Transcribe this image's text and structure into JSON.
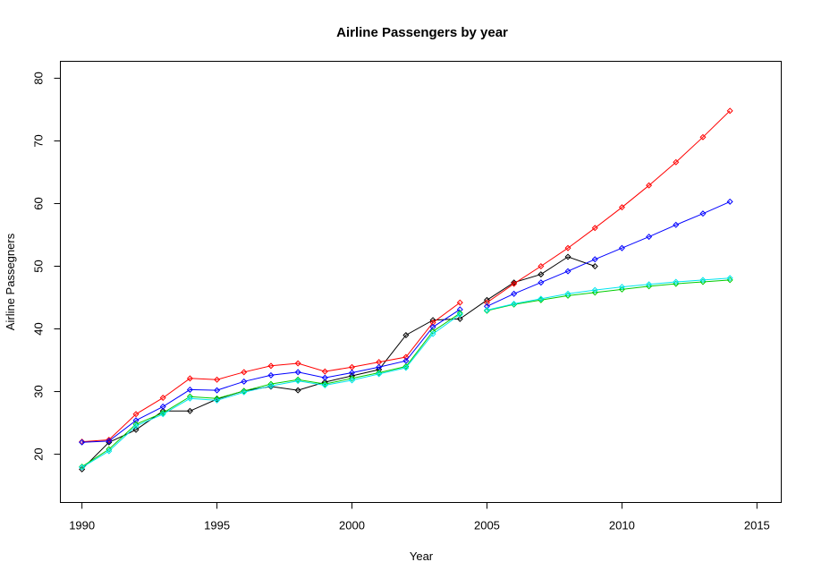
{
  "chart_data": {
    "type": "line",
    "title": "Airline Passengers by year",
    "xlabel": "Year",
    "ylabel": "Airline Passegners",
    "xlim": [
      1989.2,
      2015.9
    ],
    "ylim": [
      12.3,
      82.7
    ],
    "xticks": [
      1990,
      1995,
      2000,
      2005,
      2010,
      2015
    ],
    "yticks": [
      20,
      30,
      40,
      50,
      60,
      70,
      80
    ],
    "grid": false,
    "series": [
      {
        "color": "#000000",
        "x": [
          1990,
          1991,
          1992,
          1993,
          1994,
          1995,
          1996,
          1997,
          1998,
          1999,
          2000,
          2001,
          2002,
          2003,
          2004,
          2005,
          2006,
          2007,
          2008,
          2009
        ],
        "values": [
          17.6,
          21.9,
          23.9,
          26.9,
          26.9,
          28.8,
          30.1,
          30.8,
          30.2,
          31.5,
          32.5,
          33.5,
          39.0,
          41.4,
          41.6,
          44.6,
          47.4,
          48.7,
          51.5,
          50.0
        ]
      },
      {
        "color": "#ff0000",
        "x": [
          1990,
          1991,
          1992,
          1993,
          1994,
          1995,
          1996,
          1997,
          1998,
          1999,
          2000,
          2001,
          2002,
          2003,
          2004
        ],
        "values": [
          22.0,
          22.3,
          26.4,
          29.0,
          32.1,
          31.9,
          33.1,
          34.1,
          34.5,
          33.2,
          33.9,
          34.7,
          35.5,
          41.0,
          44.2
        ]
      },
      {
        "color": "#0000ff",
        "x": [
          1990,
          1991,
          1992,
          1993,
          1994,
          1995,
          1996,
          1997,
          1998,
          1999,
          2000,
          2001,
          2002,
          2003,
          2004
        ],
        "values": [
          21.9,
          22.1,
          25.4,
          27.6,
          30.3,
          30.2,
          31.6,
          32.6,
          33.1,
          32.2,
          33.0,
          33.9,
          34.9,
          40.3,
          43.1
        ]
      },
      {
        "color": "#00cd00",
        "x": [
          1990,
          1991,
          1992,
          1993,
          1994,
          1995,
          1996,
          1997,
          1998,
          1999,
          2000,
          2001,
          2002,
          2003,
          2004
        ],
        "values": [
          18.0,
          20.8,
          24.8,
          26.6,
          29.2,
          28.9,
          30.1,
          31.2,
          31.9,
          31.2,
          32.1,
          33.0,
          34.0,
          39.6,
          42.5
        ]
      },
      {
        "color": "#00e5ee",
        "x": [
          1990,
          1991,
          1992,
          1993,
          1994,
          1995,
          1996,
          1997,
          1998,
          1999,
          2000,
          2001,
          2002,
          2003,
          2004
        ],
        "values": [
          17.9,
          20.5,
          24.5,
          26.4,
          28.9,
          28.6,
          29.9,
          30.9,
          31.7,
          31.0,
          31.8,
          32.8,
          33.8,
          39.2,
          42.3
        ]
      },
      {
        "color": "#ff0000",
        "x": [
          2005,
          2006,
          2007,
          2008,
          2009,
          2010,
          2011,
          2012,
          2013,
          2014
        ],
        "values": [
          44.2,
          47.2,
          50.0,
          52.9,
          56.1,
          59.4,
          62.9,
          66.6,
          70.6,
          74.8
        ]
      },
      {
        "color": "#0000ff",
        "x": [
          2005,
          2006,
          2007,
          2008,
          2009,
          2010,
          2011,
          2012,
          2013,
          2014
        ],
        "values": [
          43.6,
          45.6,
          47.4,
          49.2,
          51.1,
          52.9,
          54.7,
          56.6,
          58.4,
          60.3
        ]
      },
      {
        "color": "#00cd00",
        "x": [
          2005,
          2006,
          2007,
          2008,
          2009,
          2010,
          2011,
          2012,
          2013,
          2014
        ],
        "values": [
          42.9,
          43.9,
          44.6,
          45.3,
          45.8,
          46.3,
          46.8,
          47.2,
          47.5,
          47.8
        ]
      },
      {
        "color": "#00e5ee",
        "x": [
          2005,
          2006,
          2007,
          2008,
          2009,
          2010,
          2011,
          2012,
          2013,
          2014
        ],
        "values": [
          43.0,
          44.0,
          44.8,
          45.6,
          46.2,
          46.7,
          47.1,
          47.5,
          47.8,
          48.1
        ]
      }
    ]
  }
}
